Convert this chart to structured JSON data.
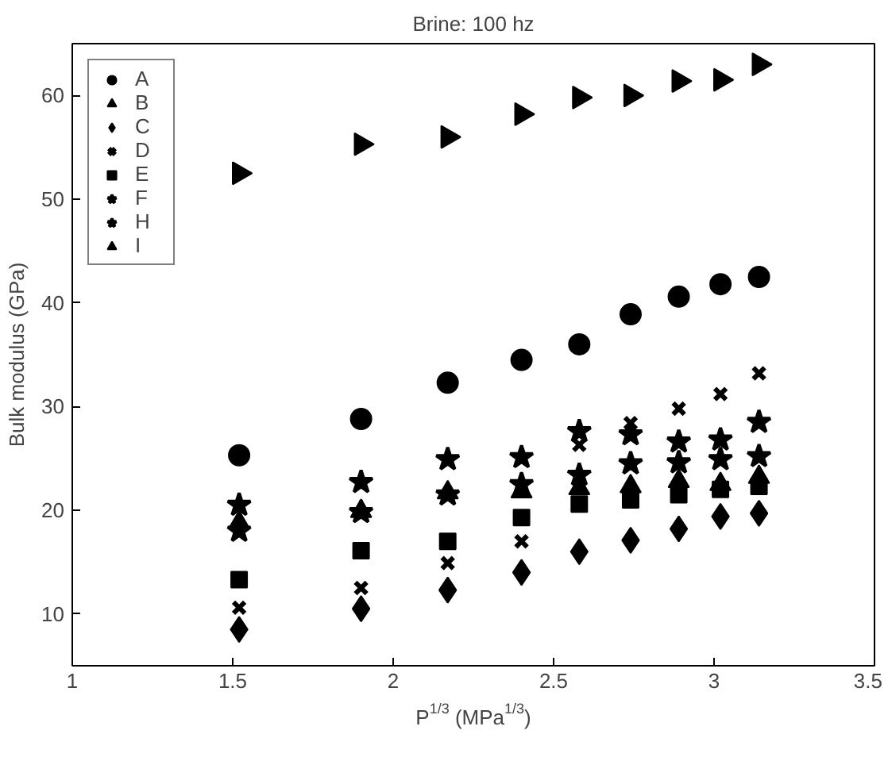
{
  "chart_data": {
    "type": "scatter",
    "title": "Brine: 100 hz",
    "xlabel": "P$^{1/3}$ (MPa$^{1/3}$)",
    "ylabel": "Bulk modulus (GPa)",
    "x": [
      1.52,
      1.9,
      2.17,
      2.4,
      2.58,
      2.74,
      2.89,
      3.02,
      3.14
    ],
    "series": [
      {
        "name": "A",
        "color": "#000000",
        "marker": "circle",
        "values": [
          25.3,
          28.8,
          32.3,
          34.5,
          36,
          38.9,
          40.6,
          41.8,
          42.5
        ]
      },
      {
        "name": "B",
        "color": "#000000",
        "marker": "triangle_right",
        "values": [
          52.5,
          55.3,
          56,
          58.2,
          59.8,
          60,
          61.4,
          61.5,
          63
        ]
      },
      {
        "name": "C",
        "color": "#000000",
        "marker": "diamond",
        "values": [
          8.5,
          10.5,
          12.3,
          14,
          16,
          17.1,
          18.2,
          19.4,
          19.7
        ]
      },
      {
        "name": "D",
        "color": "#000000",
        "marker": "cross",
        "values": [
          10.6,
          12.5,
          14.9,
          17,
          26.3,
          28.4,
          29.8,
          31.2,
          33.2
        ]
      },
      {
        "name": "E",
        "color": "#000000",
        "marker": "square",
        "values": [
          13.3,
          16.1,
          17,
          19.3,
          20.6,
          21,
          21.5,
          22,
          22.3
        ]
      },
      {
        "name": "F",
        "color": "#000000",
        "marker": "star",
        "values": [
          20.5,
          22.7,
          24.9,
          25.1,
          27.6,
          27.3,
          26.6,
          26.8,
          28.5
        ]
      },
      {
        "name": "H",
        "color": "#000000",
        "marker": "star",
        "values": [
          18,
          19.8,
          21.5,
          22.5,
          23.4,
          24.5,
          24.6,
          24.9,
          25.2
        ]
      },
      {
        "name": "I",
        "color": "#000000",
        "marker": "triangle",
        "values": [
          18.8,
          19.9,
          21.7,
          21.8,
          22.1,
          22.3,
          22.8,
          22.5,
          23.2
        ]
      }
    ],
    "xlim": [
      1,
      3.5
    ],
    "xticks": [
      1,
      1.5,
      2,
      2.5,
      3,
      3.5
    ],
    "ylim": [
      5,
      65
    ],
    "yticks": [
      10,
      20,
      30,
      40,
      50,
      60
    ],
    "grid": false,
    "legend": "top left"
  }
}
